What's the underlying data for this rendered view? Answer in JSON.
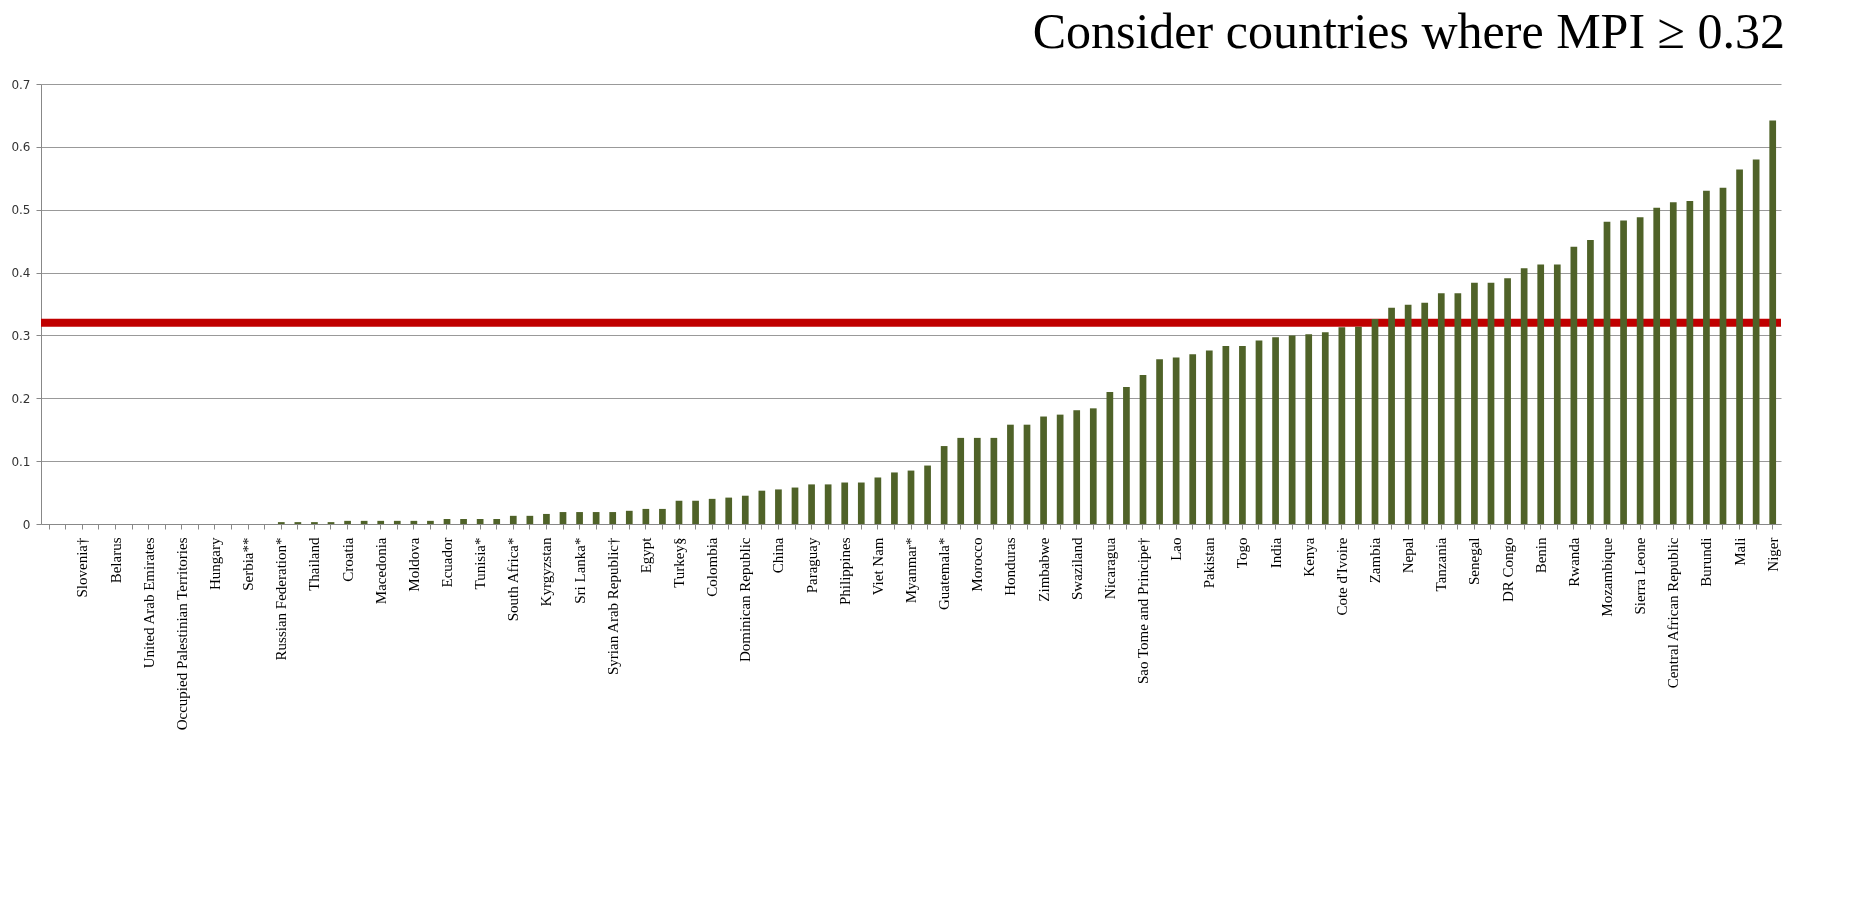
{
  "chart_data": {
    "type": "bar",
    "categories": [
      null,
      null,
      "Slovenia†",
      null,
      "Belarus",
      null,
      "United Arab Emirates",
      null,
      "Occupied Palestinian Territories",
      null,
      "Hungary",
      null,
      "Serbia**",
      null,
      "Russian Federation*",
      null,
      "Thailand",
      null,
      "Croatia",
      null,
      "Macedonia",
      null,
      "Moldova",
      null,
      "Ecuador",
      null,
      "Tunisia*",
      null,
      "South Africa*",
      null,
      "Kyrgyzstan",
      null,
      "Sri Lanka*",
      null,
      "Syrian Arab Republic†",
      null,
      "Egypt",
      null,
      "Turkey§",
      null,
      "Colombia",
      null,
      "Dominican Republic",
      null,
      "China",
      null,
      "Paraguay",
      null,
      "Philippines",
      null,
      "Viet Nam",
      null,
      "Myanmar*",
      null,
      "Guatemala*",
      null,
      "Morocco",
      null,
      "Honduras",
      null,
      "Zimbabwe",
      null,
      "Swaziland",
      null,
      "Nicaragua",
      null,
      "Sao Tome and Principe†",
      null,
      "Lao",
      null,
      "Pakistan",
      null,
      "Togo",
      null,
      "India",
      null,
      "Kenya",
      null,
      "Cote d'Ivoire",
      null,
      "Zambia",
      null,
      "Nepal",
      null,
      "Tanzania",
      null,
      "Senegal",
      null,
      "DR Congo",
      null,
      "Benin",
      null,
      "Rwanda",
      null,
      "Mozambique",
      null,
      "Sierra Leone",
      null,
      "Central African Republic",
      null,
      "Burundi",
      null,
      "Mali",
      null,
      "Niger"
    ],
    "values": [
      0,
      0,
      0,
      0,
      0,
      0,
      0,
      0,
      0,
      0,
      0,
      0,
      0,
      0,
      0.003,
      0.003,
      0.003,
      0.003,
      0.005,
      0.005,
      0.005,
      0.005,
      0.005,
      0.005,
      0.008,
      0.008,
      0.008,
      0.008,
      0.013,
      0.013,
      0.016,
      0.019,
      0.019,
      0.019,
      0.019,
      0.021,
      0.024,
      0.024,
      0.037,
      0.037,
      0.04,
      0.042,
      0.045,
      0.053,
      0.055,
      0.058,
      0.063,
      0.063,
      0.066,
      0.066,
      0.074,
      0.082,
      0.085,
      0.093,
      0.124,
      0.137,
      0.137,
      0.137,
      0.158,
      0.158,
      0.171,
      0.174,
      0.181,
      0.184,
      0.21,
      0.218,
      0.237,
      0.262,
      0.265,
      0.27,
      0.276,
      0.283,
      0.283,
      0.292,
      0.297,
      0.3,
      0.302,
      0.305,
      0.313,
      0.314,
      0.326,
      0.344,
      0.349,
      0.352,
      0.367,
      0.367,
      0.384,
      0.384,
      0.391,
      0.407,
      0.413,
      0.413,
      0.441,
      0.452,
      0.481,
      0.483,
      0.488,
      0.503,
      0.512,
      0.514,
      0.53,
      0.535,
      0.564,
      0.58,
      0.642
    ],
    "color": "#4f6228",
    "ylim": [
      0,
      0.7
    ],
    "yticks": [
      0,
      0.1,
      0.2,
      0.3,
      0.4,
      0.5,
      0.6,
      0.7
    ],
    "grid": "y",
    "ref_lines": [
      {
        "axis": "y",
        "value": 0.32,
        "color": "#c00000"
      }
    ],
    "annotations": [
      "Consider countries where MPI ≥ 0.32"
    ]
  }
}
